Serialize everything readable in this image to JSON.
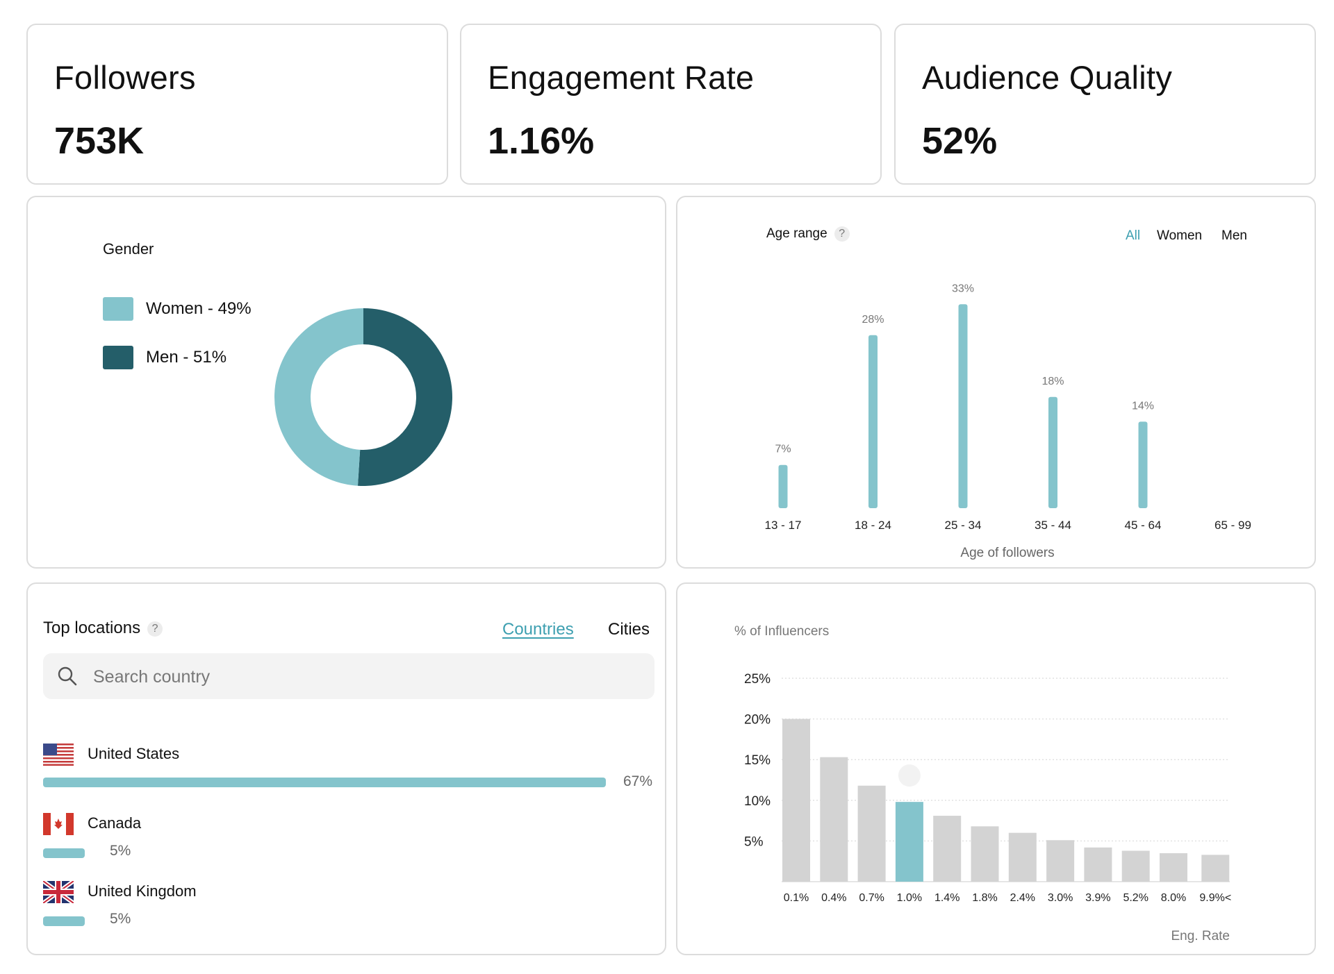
{
  "kpis": [
    {
      "label": "Followers",
      "value": "753K"
    },
    {
      "label": "Engagement Rate",
      "value": "1.16%"
    },
    {
      "label": "Audience Quality",
      "value": "52%"
    }
  ],
  "colors": {
    "accent": "#84c4cc",
    "accent_dark": "#245e69",
    "link": "#3d9fb0",
    "bar_gray": "#d3d3d3",
    "highlight": "#84c4cc"
  },
  "gender": {
    "title": "Gender",
    "items": [
      {
        "label": "Women - 49%",
        "name": "Women",
        "value": 49,
        "color": "#84c4cc"
      },
      {
        "label": "Men - 51%",
        "name": "Men",
        "value": 51,
        "color": "#245e69"
      }
    ]
  },
  "age": {
    "title": "Age range",
    "help": "?",
    "filters": [
      {
        "label": "All",
        "active": true
      },
      {
        "label": "Women",
        "active": false
      },
      {
        "label": "Men",
        "active": false
      }
    ],
    "xlabel": "Age of followers"
  },
  "locations": {
    "title": "Top locations",
    "help": "?",
    "tabs": [
      {
        "label": "Countries",
        "active": true
      },
      {
        "label": "Cities",
        "active": false
      }
    ],
    "search_placeholder": "Search country",
    "search_value": "",
    "items": [
      {
        "name": "United States",
        "flag": "us-flag",
        "value": 67,
        "label": "67%"
      },
      {
        "name": "Canada",
        "flag": "canada-flag",
        "value": 5,
        "label": "5%"
      },
      {
        "name": "United Kingdom",
        "flag": "uk-flag",
        "value": 5,
        "label": "5%"
      }
    ]
  },
  "chart_data": [
    {
      "type": "pie",
      "title": "Gender",
      "categories": [
        "Women",
        "Men"
      ],
      "values": [
        49,
        51
      ],
      "donut": true,
      "legend": "left"
    },
    {
      "type": "bar",
      "title": "Age range",
      "categories": [
        "13 - 17",
        "18 - 24",
        "25 - 34",
        "35 - 44",
        "45 - 64",
        "65 - 99"
      ],
      "values": [
        7,
        28,
        33,
        18,
        14,
        0
      ],
      "data_labels": [
        "7%",
        "28%",
        "33%",
        "18%",
        "14%",
        ""
      ],
      "xlabel": "Age of followers",
      "ylabel": "",
      "grid": false
    },
    {
      "type": "bar",
      "title": "",
      "ylabel": "% of Influencers",
      "xlabel": "Eng. Rate",
      "categories": [
        "0.1%",
        "0.4%",
        "0.7%",
        "1.0%",
        "1.4%",
        "1.8%",
        "2.4%",
        "3.0%",
        "3.9%",
        "5.2%",
        "8.0%",
        "9.9%<"
      ],
      "values": [
        20,
        15.3,
        11.8,
        9.8,
        8.1,
        6.8,
        6.0,
        5.1,
        4.2,
        3.8,
        3.5,
        3.3
      ],
      "highlight_index": 3,
      "yticks": [
        "5%",
        "10%",
        "15%",
        "20%",
        "25%"
      ],
      "ytick_values": [
        5,
        10,
        15,
        20,
        25
      ],
      "ylim": [
        0,
        25
      ],
      "grid": true
    }
  ]
}
